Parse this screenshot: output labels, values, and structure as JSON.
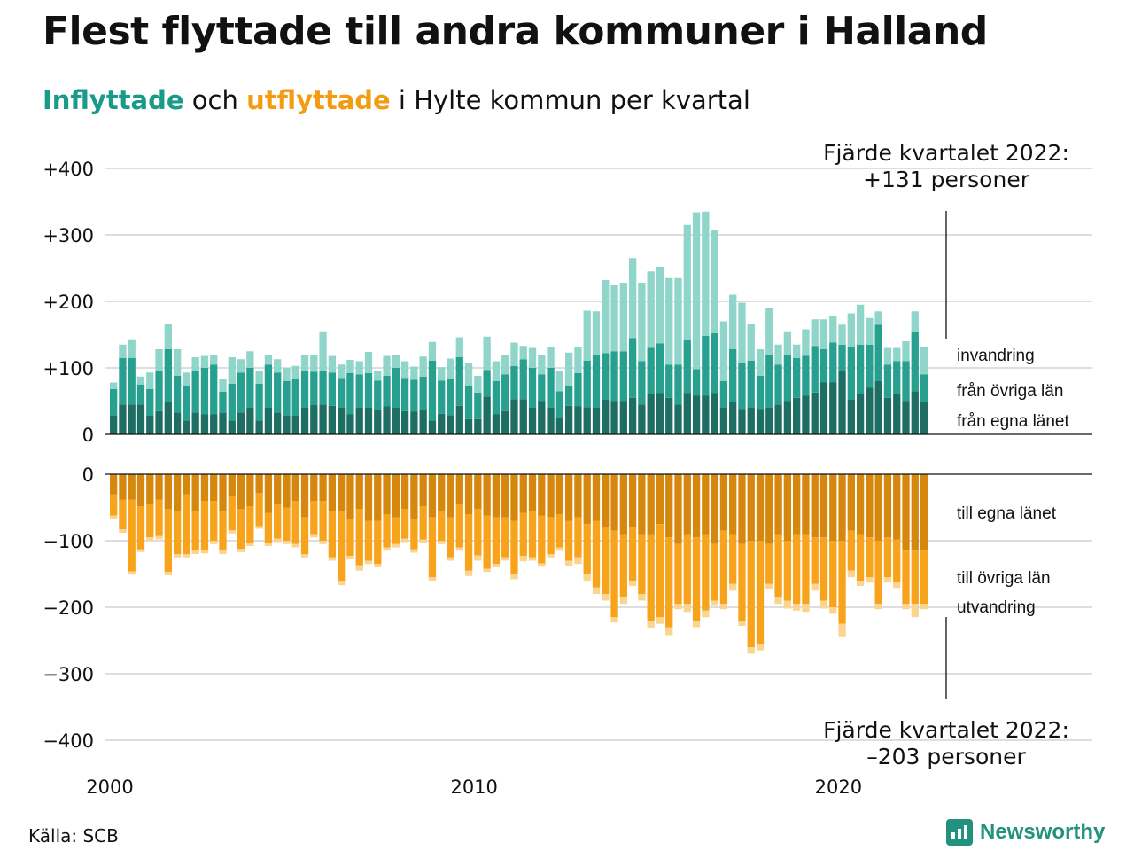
{
  "title": "Flest flyttade till andra kommuner i Halland",
  "subtitle": {
    "part1": "Inflyttade",
    "part2": " och ",
    "part3": "utflyttade",
    "part4": " i Hylte kommun per kvartal"
  },
  "source": "Källa: SCB",
  "logo": {
    "text": "Newsworthy",
    "icon": "newsworthy-logo-icon"
  },
  "colors": {
    "in_own": "#1e6e63",
    "in_other": "#27a08f",
    "in_intl": "#8fd5ca",
    "out_own": "#d5870e",
    "out_other": "#f7a31c",
    "out_intl": "#fbd490",
    "accent_in": "#1a9b8a",
    "accent_out": "#f39c12",
    "grid": "#dedede"
  },
  "annotations": {
    "top_line1": "Fjärde kvartalet 2022:",
    "top_line2": "+131 personer",
    "bottom_line1": "Fjärde kvartalet 2022:",
    "bottom_line2": "–203 personer"
  },
  "chart_data": {
    "type": "bar",
    "stacked": true,
    "x_start": "2000 Q1",
    "x_end": "2022 Q4",
    "x_ticks": [
      "2000",
      "2010",
      "2020"
    ],
    "top_panel": {
      "y_ticks": [
        "+400",
        "+300",
        "+200",
        "+100",
        "0"
      ],
      "ylim": [
        0,
        400
      ],
      "series": [
        {
          "name": "från egna länet",
          "values": [
            28,
            45,
            45,
            45,
            28,
            35,
            48,
            33,
            21,
            33,
            30,
            30,
            32,
            21,
            33,
            40,
            21,
            40,
            33,
            28,
            28,
            40,
            44,
            45,
            43,
            40,
            30,
            40,
            40,
            36,
            42,
            40,
            35,
            34,
            37,
            21,
            31,
            29,
            43,
            23,
            23,
            57,
            30,
            35,
            53,
            53,
            40,
            50,
            40,
            25,
            43,
            42,
            41,
            40,
            52,
            50,
            50,
            55,
            45,
            60,
            62,
            55,
            45,
            62,
            58,
            58,
            62,
            40,
            48,
            38,
            41,
            38,
            40,
            45,
            50,
            55,
            58,
            63,
            78,
            78,
            95,
            52,
            60,
            70,
            80,
            55,
            60,
            50,
            65,
            48
          ]
        },
        {
          "name": "från övriga län",
          "values": [
            40,
            70,
            70,
            30,
            40,
            60,
            80,
            55,
            52,
            63,
            70,
            75,
            32,
            55,
            60,
            60,
            55,
            65,
            60,
            52,
            55,
            55,
            50,
            50,
            50,
            45,
            62,
            50,
            52,
            45,
            46,
            60,
            50,
            48,
            50,
            90,
            50,
            55,
            73,
            50,
            40,
            40,
            50,
            55,
            50,
            60,
            60,
            40,
            60,
            40,
            30,
            50,
            70,
            80,
            70,
            75,
            75,
            90,
            65,
            70,
            75,
            50,
            60,
            80,
            40,
            90,
            90,
            40,
            80,
            70,
            70,
            50,
            80,
            60,
            70,
            60,
            60,
            70,
            50,
            60,
            40,
            80,
            75,
            65,
            85,
            50,
            50,
            60,
            90,
            42
          ]
        },
        {
          "name": "invandring",
          "values": [
            10,
            20,
            28,
            12,
            25,
            33,
            38,
            40,
            20,
            20,
            18,
            15,
            20,
            40,
            20,
            25,
            20,
            15,
            20,
            20,
            20,
            25,
            25,
            60,
            25,
            20,
            20,
            20,
            32,
            15,
            30,
            20,
            25,
            20,
            30,
            28,
            20,
            30,
            30,
            35,
            25,
            50,
            30,
            30,
            35,
            20,
            30,
            30,
            32,
            30,
            50,
            40,
            75,
            65,
            110,
            100,
            103,
            120,
            118,
            115,
            115,
            130,
            130,
            173,
            236,
            187,
            155,
            90,
            82,
            90,
            55,
            40,
            70,
            30,
            35,
            20,
            40,
            40,
            45,
            40,
            30,
            50,
            60,
            40,
            20,
            25,
            20,
            30,
            30,
            41
          ]
        }
      ]
    },
    "bottom_panel": {
      "y_ticks": [
        "0",
        "−100",
        "−200",
        "−300",
        "−400"
      ],
      "ylim": [
        -400,
        0
      ],
      "series": [
        {
          "name": "till egna länet",
          "values": [
            -30,
            -38,
            -38,
            -48,
            -45,
            -38,
            -52,
            -55,
            -30,
            -55,
            -40,
            -40,
            -55,
            -32,
            -52,
            -48,
            -28,
            -58,
            -45,
            -50,
            -40,
            -65,
            -40,
            -40,
            -55,
            -55,
            -68,
            -52,
            -70,
            -70,
            -60,
            -65,
            -52,
            -68,
            -48,
            -65,
            -55,
            -65,
            -45,
            -60,
            -52,
            -62,
            -65,
            -65,
            -70,
            -58,
            -55,
            -62,
            -65,
            -60,
            -70,
            -65,
            -75,
            -70,
            -80,
            -85,
            -90,
            -80,
            -90,
            -90,
            -75,
            -95,
            -105,
            -90,
            -95,
            -90,
            -105,
            -85,
            -90,
            -105,
            -100,
            -100,
            -105,
            -90,
            -100,
            -90,
            -90,
            -95,
            -95,
            -100,
            -100,
            -85,
            -90,
            -95,
            -100,
            -95,
            -98,
            -115,
            -115,
            -115
          ]
        },
        {
          "name": "till övriga län",
          "values": [
            -32,
            -45,
            -108,
            -65,
            -50,
            -55,
            -95,
            -65,
            -90,
            -60,
            -75,
            -60,
            -60,
            -52,
            -60,
            -55,
            -50,
            -45,
            -52,
            -50,
            -65,
            -55,
            -50,
            -60,
            -70,
            -105,
            -55,
            -85,
            -60,
            -65,
            -50,
            -40,
            -45,
            -45,
            -50,
            -90,
            -45,
            -60,
            -65,
            -85,
            -70,
            -80,
            -70,
            -60,
            -80,
            -65,
            -70,
            -72,
            -55,
            -50,
            -60,
            -60,
            -75,
            -100,
            -100,
            -130,
            -95,
            -80,
            -90,
            -130,
            -140,
            -135,
            -90,
            -105,
            -125,
            -115,
            -85,
            -110,
            -75,
            -115,
            -160,
            -155,
            -60,
            -95,
            -90,
            -105,
            -105,
            -70,
            -95,
            -100,
            -125,
            -60,
            -70,
            -60,
            -95,
            -60,
            -65,
            -80,
            -80,
            -80
          ]
        },
        {
          "name": "utvandring",
          "values": [
            -5,
            -5,
            -5,
            -4,
            -5,
            -5,
            -5,
            -5,
            -5,
            -5,
            -4,
            -5,
            -5,
            -5,
            -5,
            -5,
            -4,
            -5,
            -5,
            -5,
            -5,
            -5,
            -5,
            -5,
            -5,
            -7,
            -5,
            -8,
            -5,
            -5,
            -5,
            -5,
            -5,
            -5,
            -5,
            -5,
            -5,
            -5,
            -5,
            -8,
            -8,
            -5,
            -5,
            -5,
            -8,
            -8,
            -5,
            -5,
            -5,
            -5,
            -8,
            -10,
            -10,
            -10,
            -10,
            -8,
            -10,
            -8,
            -10,
            -12,
            -10,
            -12,
            -8,
            -12,
            -10,
            -10,
            -8,
            -8,
            -10,
            -8,
            -10,
            -10,
            -8,
            -10,
            -12,
            -10,
            -12,
            -10,
            -12,
            -10,
            -20,
            -10,
            -8,
            -8,
            -8,
            -8,
            -8,
            -8,
            -20,
            -8
          ]
        }
      ]
    },
    "right_labels": {
      "top": [
        "invandring",
        "från övriga län",
        "från egna länet"
      ],
      "bottom": [
        "till egna länet",
        "till övriga län",
        "utvandring"
      ]
    }
  }
}
